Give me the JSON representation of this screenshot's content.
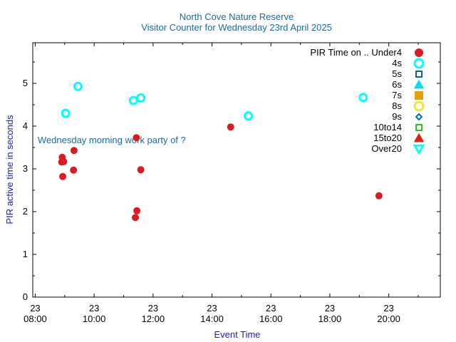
{
  "chart_data": {
    "type": "scatter",
    "title": "North Cove Nature Reserve",
    "subtitle": "Visitor Counter for Wednesday 23rd April 2025",
    "xlabel": "Event Time",
    "ylabel": "PIR active time in seconds",
    "xlim": [
      "2025-04-23 07:55",
      "2025-04-23 21:45"
    ],
    "ylim": [
      0,
      5.95
    ],
    "x_ticks": [
      {
        "time": "2025-04-23 08:00",
        "day": "23",
        "label": "08:00"
      },
      {
        "time": "2025-04-23 10:00",
        "day": "23",
        "label": "10:00"
      },
      {
        "time": "2025-04-23 12:00",
        "day": "23",
        "label": "12:00"
      },
      {
        "time": "2025-04-23 14:00",
        "day": "23",
        "label": "14:00"
      },
      {
        "time": "2025-04-23 16:00",
        "day": "23",
        "label": "16:00"
      },
      {
        "time": "2025-04-23 18:00",
        "day": "23",
        "label": "18:00"
      },
      {
        "time": "2025-04-23 20:00",
        "day": "23",
        "label": "20:00"
      }
    ],
    "y_ticks": [
      0,
      1,
      2,
      3,
      4,
      5
    ],
    "grid": false,
    "legend_position": "top-right",
    "legend_title": "PIR Time on ..",
    "annotation": {
      "text": "Wednesday morning work party of ?",
      "time": "2025-04-23 08:05",
      "y": 3.67
    },
    "series": [
      {
        "name": "Under4",
        "marker": "filled-circle",
        "color": "#dd1a22",
        "points": [
          {
            "time": "2025-04-23 08:55",
            "y": 3.27
          },
          {
            "time": "2025-04-23 08:54",
            "y": 3.16
          },
          {
            "time": "2025-04-23 08:58",
            "y": 3.17
          },
          {
            "time": "2025-04-23 08:56",
            "y": 2.82
          },
          {
            "time": "2025-04-23 09:18",
            "y": 2.97
          },
          {
            "time": "2025-04-23 09:19",
            "y": 3.43
          },
          {
            "time": "2025-04-23 11:26",
            "y": 3.73
          },
          {
            "time": "2025-04-23 11:35",
            "y": 2.98
          },
          {
            "time": "2025-04-23 11:27",
            "y": 2.02
          },
          {
            "time": "2025-04-23 11:24",
            "y": 1.86
          },
          {
            "time": "2025-04-23 14:38",
            "y": 3.98
          },
          {
            "time": "2025-04-23 19:40",
            "y": 2.37
          }
        ]
      },
      {
        "name": "4s",
        "marker": "open-circle",
        "color": "#00ffff",
        "points": [
          {
            "time": "2025-04-23 09:02",
            "y": 4.3
          },
          {
            "time": "2025-04-23 09:27",
            "y": 4.93
          },
          {
            "time": "2025-04-23 11:20",
            "y": 4.6
          },
          {
            "time": "2025-04-23 11:35",
            "y": 4.66
          },
          {
            "time": "2025-04-23 15:14",
            "y": 4.24
          },
          {
            "time": "2025-04-23 19:08",
            "y": 4.67
          }
        ]
      },
      {
        "name": "5s",
        "marker": "open-square",
        "color": "#0d5ea8",
        "points": []
      },
      {
        "name": "6s",
        "marker": "filled-triangle",
        "color": "#00e0f0",
        "points": []
      },
      {
        "name": "7s",
        "marker": "filled-square",
        "color": "#e69f00",
        "points": []
      },
      {
        "name": "8s",
        "marker": "open-circle",
        "color": "#f0e442",
        "points": []
      },
      {
        "name": "9s",
        "marker": "open-diamond",
        "color": "#0072b2",
        "points": []
      },
      {
        "name": "10to14",
        "marker": "open-square",
        "color": "#22cc22",
        "points": []
      },
      {
        "name": "15to20",
        "marker": "filled-triangle",
        "color": "#e51e10",
        "points": []
      },
      {
        "name": "Over20",
        "marker": "open-triangle-down",
        "color": "#00ffff",
        "points": []
      }
    ],
    "colors": {
      "title": "#1a6aa0",
      "axis_label": "#1a1acc",
      "annotation": "#1a6aa0",
      "axis": "#000000"
    }
  }
}
